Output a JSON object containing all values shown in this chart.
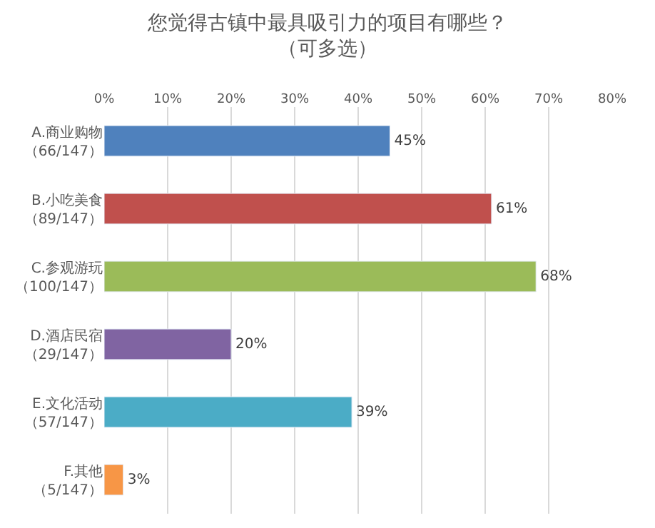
{
  "chart_data": {
    "type": "bar",
    "orientation": "horizontal",
    "title": "您觉得古镇中最具吸引力的项目有哪些？（可多选）",
    "categories": [
      "A.商业购物（66/147）",
      "B.小吃美食（89/147）",
      "C.参观游玩（100/147）",
      "D.酒店民宿（29/147）",
      "E.文化活动（57/147）",
      "F.其他（5/147）"
    ],
    "values": [
      45,
      61,
      68,
      20,
      39,
      3
    ],
    "colors": [
      "#4f81bd",
      "#c0504d",
      "#9bbb59",
      "#8064a2",
      "#4bacc6",
      "#f79646"
    ],
    "value_labels": [
      "45%",
      "61%",
      "68%",
      "20%",
      "39%",
      "3%"
    ],
    "xlim": [
      0,
      80
    ],
    "xticks": [
      {
        "value": 0,
        "label": "0%"
      },
      {
        "value": 10,
        "label": "10%"
      },
      {
        "value": 20,
        "label": "20%"
      },
      {
        "value": 30,
        "label": "30%"
      },
      {
        "value": 40,
        "label": "40%"
      },
      {
        "value": 50,
        "label": "50%"
      },
      {
        "value": 60,
        "label": "60%"
      },
      {
        "value": 70,
        "label": "70%"
      },
      {
        "value": 80,
        "label": "80%"
      }
    ],
    "grid": "x"
  }
}
